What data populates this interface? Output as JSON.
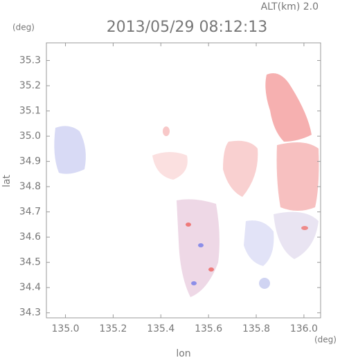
{
  "chart_data": {
    "type": "map",
    "title": "2013/05/29 08:12:13",
    "altitude_label": "ALT(km) 2.0",
    "x_label": "lon",
    "y_label": "lat",
    "x_unit": "(deg)",
    "y_unit": "(deg)",
    "xlim": [
      134.92,
      136.07
    ],
    "ylim": [
      34.28,
      35.37
    ],
    "xticks": [
      {
        "value": 135.0,
        "label": "135.0"
      },
      135.2,
      135.4,
      135.6,
      135.8,
      {
        "value": 136.0,
        "label": "136.0"
      }
    ],
    "yticks": [
      34.3,
      34.4,
      34.5,
      34.6,
      34.7,
      34.8,
      34.9,
      {
        "value": 35.0,
        "label": "35.0"
      },
      35.1,
      35.2,
      35.3
    ]
  }
}
